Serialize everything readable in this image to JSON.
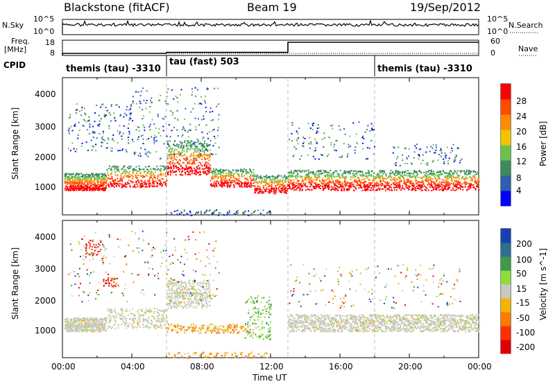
{
  "header": {
    "station": "Blackstone (fitACF)",
    "beam": "Beam 19",
    "date": "19/Sep/2012"
  },
  "noise_panel": {
    "left_label": "N.Sky",
    "right_label": "N.Search",
    "left_ticks": [
      "10^5",
      "10^0"
    ],
    "right_ticks": [
      "10^5",
      "10^0"
    ]
  },
  "freq_panel": {
    "left_label_1": "Freq.",
    "left_label_2": "[MHz]",
    "right_label": "Nave",
    "left_ticks": [
      "18",
      "8"
    ],
    "right_ticks": [
      "60",
      "0"
    ],
    "freq_steps": [
      {
        "t0": 0,
        "t1": 6,
        "level": 0.15
      },
      {
        "t0": 6,
        "t1": 13,
        "level": 0.22
      },
      {
        "t0": 13,
        "t1": 24,
        "level": 0.95
      }
    ]
  },
  "cpid": {
    "label": "CPID",
    "modes": [
      {
        "text": "themis (tau) -3310",
        "start_hour": 0
      },
      {
        "text": "tau (fast) 503",
        "start_hour": 6
      },
      {
        "text": "themis (tau) -3310",
        "start_hour": 18
      }
    ]
  },
  "chart_data": [
    {
      "type": "heatmap",
      "title": "",
      "ylabel": "Slant Range [km]",
      "ylim": [
        200,
        4600
      ],
      "yticks": [
        "1000",
        "2000",
        "3000",
        "4000"
      ],
      "colorbar": {
        "label": "Power [dB]",
        "ticks": [
          "4",
          "8",
          "12",
          "16",
          "20",
          "24",
          "28"
        ],
        "colors": [
          "#0000ff",
          "#2b5fb0",
          "#3d8a5c",
          "#6cc24a",
          "#f2c400",
          "#ff8c00",
          "#ff4a00",
          "#ff0000"
        ]
      }
    },
    {
      "type": "heatmap",
      "title": "",
      "xlabel": "Time UT",
      "ylabel": "Slant Range [km]",
      "ylim": [
        200,
        4600
      ],
      "xlim": [
        0,
        24
      ],
      "yticks": [
        "1000",
        "2000",
        "3000",
        "4000"
      ],
      "xticks": [
        "00:00",
        "04:00",
        "08:00",
        "12:00",
        "16:00",
        "20:00",
        "00:00"
      ],
      "colorbar": {
        "label": "Velocity [m s^-1]",
        "ticks": [
          "200",
          "100",
          "50",
          "15",
          "-15",
          "-50",
          "-100",
          "-200"
        ],
        "colors": [
          "#1a3fb0",
          "#2e6f8e",
          "#3e9a4a",
          "#8edb3c",
          "#c8c8c0",
          "#f4b400",
          "#ff7a00",
          "#ff3000",
          "#e00000"
        ]
      }
    }
  ]
}
